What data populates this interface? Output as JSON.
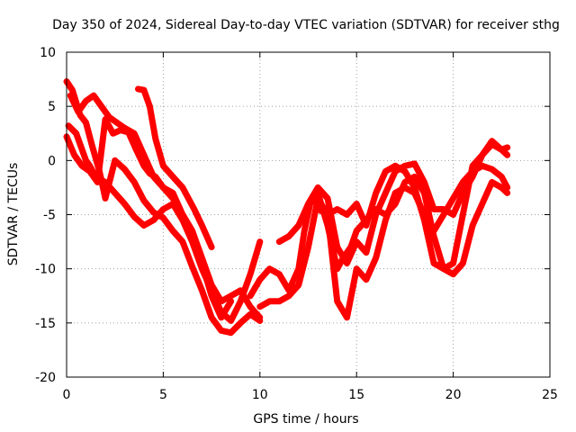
{
  "chart_data": {
    "type": "line",
    "title": "Day 350 of 2024, Sidereal Day-to-day VTEC variation (SDTVAR) for receiver sthg",
    "xlabel": "GPS time / hours",
    "ylabel": "SDTVAR / TECUs",
    "xlim": [
      0,
      25
    ],
    "ylim": [
      -20,
      10
    ],
    "xticks": [
      0,
      5,
      10,
      15,
      20,
      25
    ],
    "yticks": [
      -20,
      -15,
      -10,
      -5,
      0,
      5,
      10
    ],
    "xtick_labels": [
      "0",
      "5",
      "10",
      "15",
      "20",
      "25"
    ],
    "ytick_labels": [
      "-20",
      "-15",
      "-10",
      "-5",
      "0",
      "5",
      "10"
    ],
    "grid": true,
    "color": "#ff0000",
    "marker": "+",
    "series": [
      {
        "name": "s1",
        "x": [
          0,
          0.3,
          0.7,
          1.0,
          1.3,
          1.7,
          2.0,
          2.5,
          3.0,
          3.5,
          4.0,
          4.5,
          5.0,
          5.5,
          6.0,
          6.5,
          7.0,
          7.5,
          8.0,
          8.5,
          9.0,
          9.5,
          10.0
        ],
        "values": [
          7.3,
          6.5,
          4.2,
          3.5,
          1.5,
          -1.0,
          -3.5,
          0.0,
          -0.8,
          -2.0,
          -3.7,
          -4.8,
          -5.3,
          -6.5,
          -7.5,
          -9.8,
          -12.0,
          -14.5,
          -15.7,
          -15.9,
          -15.0,
          -14.2,
          -14.8
        ]
      },
      {
        "name": "s2",
        "x": [
          0.1,
          0.5,
          0.8,
          1.0,
          1.2,
          1.5,
          2.0,
          2.5,
          3.0,
          3.5,
          4.0,
          4.5,
          5.0,
          5.5,
          6.0,
          6.5,
          7.0,
          7.5,
          8.0,
          8.5,
          9.0,
          9.5,
          10.0
        ],
        "values": [
          3.2,
          2.5,
          1.0,
          0.0,
          -0.5,
          -1.5,
          -2.0,
          -3.0,
          -4.0,
          -5.2,
          -6.0,
          -5.5,
          -4.5,
          -4.0,
          -5.5,
          -7.5,
          -10.0,
          -12.0,
          -14.0,
          -14.8,
          -13.0,
          -10.5,
          -7.5
        ]
      },
      {
        "name": "s3",
        "x": [
          0.2,
          0.6,
          1.0,
          1.4,
          1.8,
          2.2,
          2.6,
          3.0,
          3.5,
          4.0,
          4.5,
          5.0,
          5.5,
          6.0,
          6.5,
          7.0,
          7.5,
          8.0,
          8.5,
          9.0,
          9.5,
          10.0
        ],
        "values": [
          6.0,
          4.5,
          5.5,
          6.0,
          5.0,
          4.0,
          3.5,
          3.0,
          2.5,
          0.5,
          -1.5,
          -2.5,
          -3.5,
          -5.0,
          -6.5,
          -9.0,
          -11.5,
          -13.0,
          -12.5,
          -12.0,
          -13.5,
          -14.5
        ]
      },
      {
        "name": "s4",
        "x": [
          0.0,
          0.4,
          0.8,
          1.2,
          1.6,
          2.0,
          2.4,
          2.8,
          3.2,
          3.6,
          4.0,
          4.3,
          4.6,
          5.0,
          5.5,
          6.0,
          6.5,
          7.0,
          7.5,
          8.0,
          8.5
        ],
        "values": [
          2.2,
          0.5,
          -0.5,
          -1.0,
          -2.0,
          3.8,
          2.5,
          2.8,
          2.6,
          1.0,
          -0.5,
          -1.2,
          -1.5,
          -2.5,
          -3.0,
          -5.0,
          -6.5,
          -9.5,
          -12.5,
          -14.5,
          -13.0
        ]
      },
      {
        "name": "s5",
        "x": [
          3.7,
          4.0,
          4.3,
          4.6,
          5.0,
          5.5,
          6.0,
          6.3,
          6.6,
          7.0,
          7.5
        ],
        "values": [
          6.6,
          6.5,
          5.0,
          2.0,
          -0.5,
          -1.5,
          -2.5,
          -3.5,
          -4.5,
          -6.0,
          -8.0
        ]
      },
      {
        "name": "s6",
        "x": [
          9.5,
          10.0,
          10.5,
          11.0,
          11.5,
          12.0,
          12.3,
          12.6,
          13.0,
          13.5,
          14.0,
          14.3,
          14.7,
          15.0,
          15.5,
          16.0,
          16.5,
          17.0,
          17.5,
          18.0,
          18.5,
          19.0,
          19.5,
          20.0,
          20.5,
          21.0,
          21.5,
          22.0,
          22.5,
          22.8
        ],
        "values": [
          -12.5,
          -11.0,
          -10.0,
          -10.5,
          -12.0,
          -10.0,
          -6.5,
          -4.0,
          -3.0,
          -6.0,
          -10.0,
          -9.0,
          -8.0,
          -6.5,
          -5.5,
          -4.5,
          -5.0,
          -4.0,
          -2.0,
          -1.5,
          -3.0,
          -7.0,
          -10.0,
          -10.5,
          -9.5,
          -6.0,
          -4.0,
          -2.0,
          -2.5,
          -3.0
        ]
      },
      {
        "name": "s7",
        "x": [
          10.0,
          10.5,
          11.0,
          11.5,
          12.0,
          12.5,
          13.0,
          13.5,
          14.0,
          14.5,
          15.0,
          15.5,
          16.0,
          16.5,
          17.0,
          17.5,
          18.0,
          18.5,
          19.0,
          19.5,
          20.0,
          20.5,
          21.0,
          21.5,
          22.0,
          22.5,
          22.8
        ],
        "values": [
          -13.5,
          -13.0,
          -13.0,
          -12.5,
          -11.5,
          -8.0,
          -3.5,
          -5.0,
          -13.0,
          -14.5,
          -10.0,
          -11.0,
          -9.0,
          -5.5,
          -3.0,
          -2.5,
          -3.0,
          -5.0,
          -6.5,
          -5.0,
          -3.5,
          -2.0,
          -1.0,
          -0.5,
          -0.8,
          -1.5,
          -2.5
        ]
      },
      {
        "name": "s8",
        "x": [
          11.0,
          11.5,
          12.0,
          12.5,
          13.0,
          13.5,
          14.0,
          14.5,
          15.0,
          15.5,
          16.0,
          16.5,
          17.0,
          17.5,
          18.0,
          18.5,
          19.0,
          19.5,
          20.0,
          20.5,
          21.0,
          21.5,
          22.0,
          22.5,
          22.8
        ],
        "values": [
          -7.5,
          -7.0,
          -6.0,
          -4.0,
          -2.5,
          -3.5,
          -8.0,
          -9.5,
          -7.5,
          -8.5,
          -5.0,
          -3.0,
          -1.0,
          -0.5,
          -0.3,
          -2.0,
          -4.5,
          -4.5,
          -5.0,
          -3.0,
          -1.5,
          0.5,
          1.5,
          1.0,
          0.5
        ]
      },
      {
        "name": "s9",
        "x": [
          13.0,
          13.5,
          14.0,
          14.5,
          15.0,
          15.5,
          16.0,
          16.5,
          17.0,
          17.5,
          18.0,
          18.5,
          19.0,
          19.5,
          20.0,
          20.5,
          21.0,
          21.5,
          22.0,
          22.5,
          22.8
        ],
        "values": [
          -4.5,
          -5.0,
          -4.5,
          -5.0,
          -4.0,
          -6.0,
          -3.0,
          -1.0,
          -0.5,
          -1.0,
          -2.5,
          -5.5,
          -9.5,
          -10.0,
          -9.5,
          -5.0,
          -0.5,
          0.5,
          1.8,
          1.0,
          1.2
        ]
      }
    ]
  }
}
